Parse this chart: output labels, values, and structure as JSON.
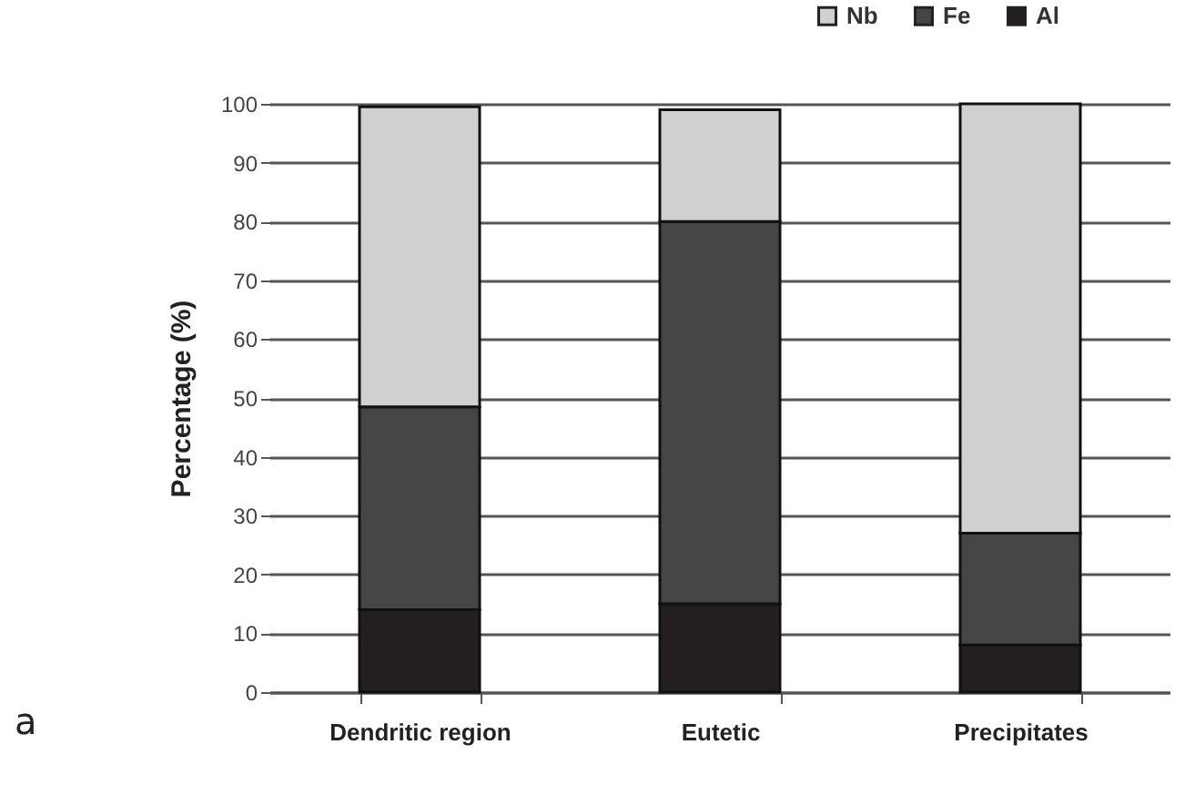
{
  "chart_data": {
    "type": "bar",
    "stacked": true,
    "categories": [
      "Dendritic region",
      "Eutetic",
      "Precipitates"
    ],
    "series": [
      {
        "name": "Al",
        "color": "#231f20",
        "values": [
          14,
          15,
          8
        ]
      },
      {
        "name": "Fe",
        "color": "#454545",
        "values": [
          34.5,
          65,
          19
        ]
      },
      {
        "name": "Nb",
        "color": "#d0d0d0",
        "values": [
          51,
          19,
          73
        ]
      }
    ],
    "ylabel": "Percentage (%)",
    "ylim": [
      0,
      100
    ],
    "yticks": [
      0,
      10,
      20,
      30,
      40,
      50,
      60,
      70,
      80,
      90,
      100
    ],
    "grid": "y",
    "legend": "top right",
    "annotations": [
      "a"
    ]
  }
}
